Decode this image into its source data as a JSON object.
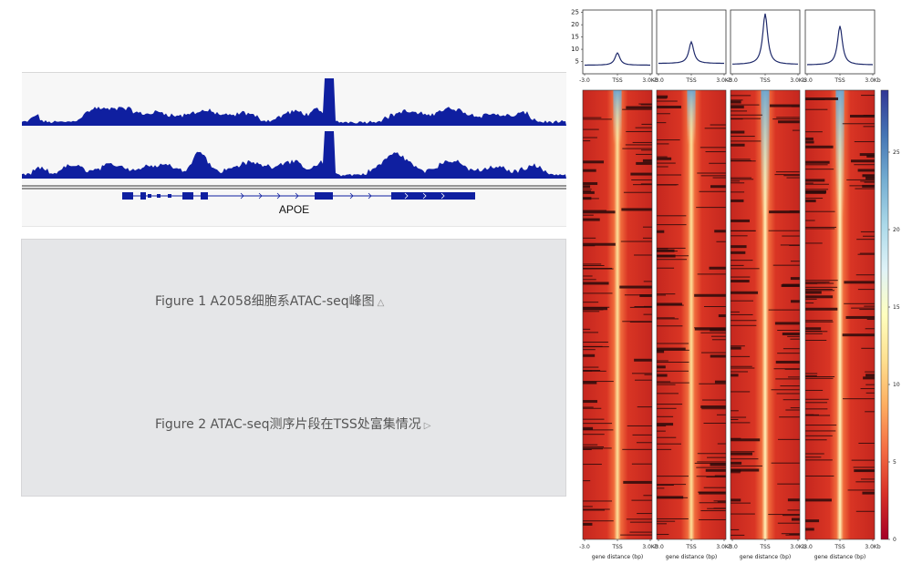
{
  "figure1": {
    "gene_label": "APOE",
    "track_color": "#0f1fa0"
  },
  "captions": [
    {
      "text": "Figure 1 A2058细胞系ATAC-seq峰图",
      "arrow": "△"
    },
    {
      "text": "Figure 2 ATAC-seq测序片段在TSS处富集情况",
      "arrow": "▷"
    }
  ],
  "chart_data": [
    {
      "type": "line",
      "panels": 4,
      "x_ticks": [
        "-3.0",
        "TSS",
        "3.0Kb"
      ],
      "y_ticks": [
        5,
        10,
        15,
        20,
        25
      ],
      "ylim": [
        0,
        26
      ],
      "series": [
        {
          "baseline": 3.5,
          "peak": 8.5
        },
        {
          "baseline": 4.2,
          "peak": 13
        },
        {
          "baseline": 3.8,
          "peak": 24.5
        },
        {
          "baseline": 3.6,
          "peak": 19.5
        }
      ],
      "line_color": "#1f2a6b"
    },
    {
      "type": "heatmap",
      "panels": 4,
      "x_ticks": [
        "-3.0",
        "TSS",
        "3.0Kb"
      ],
      "xlabel": "gene distance (bp)",
      "colorbar_ticks": [
        0,
        5,
        10,
        15,
        20,
        25
      ],
      "colorbar_range": [
        0,
        29
      ],
      "colormap": [
        "#a50026",
        "#d73027",
        "#f46d43",
        "#fdae61",
        "#fee090",
        "#ffffbf",
        "#e0f3f8",
        "#abd9e9",
        "#74add1",
        "#4575b4",
        "#313695"
      ]
    }
  ]
}
